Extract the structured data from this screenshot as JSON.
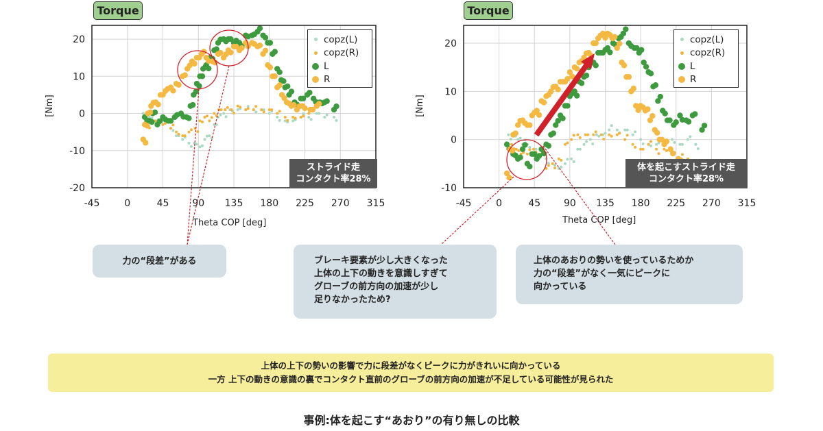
{
  "colors": {
    "L": "#3e9a3e",
    "R": "#f4b942",
    "copzL": "#a9d9c3",
    "copzR": "#f2b43a",
    "highlight": "#d0202a"
  },
  "chart_data": [
    {
      "type": "scatter",
      "badge": "Torque",
      "xlabel": "Theta COP [deg]",
      "ylabel": "[Nm]",
      "xlim": [
        -45,
        315
      ],
      "ylim": [
        -20,
        23.7
      ],
      "xticks": [
        "-45",
        "0",
        "45",
        "90",
        "135",
        "180",
        "225",
        "270",
        "315"
      ],
      "yticks": [
        "20",
        "10",
        "0",
        "-10",
        "-20"
      ],
      "grid": true,
      "legend_position": "top-right",
      "tag": [
        "ストライド走",
        "コンタクト率28%"
      ],
      "series": [
        {
          "name": "copz(L)",
          "key": "copzL",
          "marker": "small",
          "points": [
            [
              20,
              0
            ],
            [
              28,
              -1
            ],
            [
              36,
              -2
            ],
            [
              45,
              -3
            ],
            [
              55,
              -4
            ],
            [
              62,
              -6
            ],
            [
              70,
              -7
            ],
            [
              78,
              -8
            ],
            [
              85,
              -8
            ],
            [
              92,
              -9
            ],
            [
              98,
              -7
            ],
            [
              104,
              -6
            ],
            [
              110,
              -3
            ],
            [
              115,
              -1
            ],
            [
              122,
              0
            ],
            [
              130,
              1
            ],
            [
              140,
              1
            ],
            [
              150,
              1
            ],
            [
              160,
              1
            ],
            [
              170,
              1
            ],
            [
              180,
              0
            ],
            [
              190,
              -1
            ],
            [
              200,
              -2
            ],
            [
              210,
              -2
            ],
            [
              220,
              -1
            ],
            [
              230,
              -1
            ],
            [
              240,
              0
            ],
            [
              250,
              -1
            ],
            [
              262,
              -1
            ]
          ]
        },
        {
          "name": "copz(R)",
          "key": "copzR",
          "marker": "small",
          "points": [
            [
              25,
              -3
            ],
            [
              35,
              -2
            ],
            [
              45,
              -3
            ],
            [
              55,
              -4
            ],
            [
              62,
              -5
            ],
            [
              70,
              -6
            ],
            [
              78,
              -5
            ],
            [
              86,
              -4
            ],
            [
              92,
              -2
            ],
            [
              98,
              -1
            ],
            [
              104,
              -2
            ],
            [
              110,
              0
            ],
            [
              116,
              1
            ],
            [
              124,
              1
            ],
            [
              132,
              1
            ],
            [
              140,
              2
            ],
            [
              150,
              1
            ],
            [
              160,
              1
            ],
            [
              170,
              1
            ],
            [
              180,
              1
            ],
            [
              190,
              0
            ],
            [
              200,
              -1
            ],
            [
              210,
              -1
            ],
            [
              220,
              -1
            ],
            [
              230,
              0
            ]
          ]
        },
        {
          "name": "L",
          "key": "L",
          "marker": "large",
          "points": [
            [
              22,
              -1
            ],
            [
              28,
              -2
            ],
            [
              32,
              0
            ],
            [
              38,
              -3
            ],
            [
              45,
              -1
            ],
            [
              52,
              -2
            ],
            [
              60,
              -1
            ],
            [
              68,
              0
            ],
            [
              75,
              -1
            ],
            [
              80,
              2
            ],
            [
              84,
              5
            ],
            [
              88,
              8
            ],
            [
              92,
              10
            ],
            [
              96,
              12
            ],
            [
              100,
              13
            ],
            [
              105,
              15
            ],
            [
              110,
              17
            ],
            [
              115,
              19
            ],
            [
              122,
              20
            ],
            [
              128,
              20
            ],
            [
              135,
              19
            ],
            [
              142,
              19
            ],
            [
              150,
              21
            ],
            [
              158,
              21
            ],
            [
              165,
              22
            ],
            [
              172,
              21
            ],
            [
              178,
              19
            ],
            [
              184,
              16
            ],
            [
              190,
              12
            ],
            [
              195,
              9
            ],
            [
              200,
              7
            ],
            [
              205,
              5
            ],
            [
              212,
              3
            ],
            [
              220,
              4
            ],
            [
              228,
              5
            ],
            [
              236,
              4
            ],
            [
              244,
              3
            ],
            [
              250,
              3
            ],
            [
              262,
              1
            ]
          ]
        },
        {
          "name": "R",
          "key": "R",
          "marker": "large",
          "points": [
            [
              20,
              -7
            ],
            [
              22,
              -3
            ],
            [
              26,
              0
            ],
            [
              30,
              2
            ],
            [
              36,
              3
            ],
            [
              42,
              5
            ],
            [
              48,
              6
            ],
            [
              55,
              7
            ],
            [
              62,
              8
            ],
            [
              70,
              10
            ],
            [
              76,
              12
            ],
            [
              82,
              14
            ],
            [
              88,
              15
            ],
            [
              94,
              16
            ],
            [
              100,
              15
            ],
            [
              108,
              14
            ],
            [
              115,
              16
            ],
            [
              122,
              15
            ],
            [
              128,
              17
            ],
            [
              135,
              18
            ],
            [
              142,
              17
            ],
            [
              150,
              19
            ],
            [
              158,
              19
            ],
            [
              165,
              18
            ],
            [
              172,
              16
            ],
            [
              178,
              13
            ],
            [
              184,
              10
            ],
            [
              190,
              7
            ],
            [
              196,
              5
            ],
            [
              202,
              3
            ],
            [
              208,
              2
            ],
            [
              215,
              1
            ],
            [
              222,
              2
            ],
            [
              232,
              1
            ],
            [
              240,
              2
            ]
          ]
        }
      ]
    },
    {
      "type": "scatter",
      "badge": "Torque",
      "xlabel": "Theta COP [deg]",
      "ylabel": "[Nm]",
      "xlim": [
        -45,
        315
      ],
      "ylim": [
        -10,
        23.7
      ],
      "xticks": [
        "-45",
        "0",
        "45",
        "90",
        "135",
        "180",
        "225",
        "270",
        "315"
      ],
      "yticks": [
        "20",
        "10",
        "0",
        "-10"
      ],
      "grid": true,
      "legend_position": "top-right",
      "tag": [
        "体を起こすストライド走",
        "コンタクト率28%"
      ],
      "series": [
        {
          "name": "copz(L)",
          "key": "copzL",
          "marker": "small",
          "points": [
            [
              12,
              1
            ],
            [
              18,
              1
            ],
            [
              24,
              0
            ],
            [
              30,
              -1
            ],
            [
              36,
              -1
            ],
            [
              44,
              -2
            ],
            [
              52,
              -3
            ],
            [
              60,
              -4
            ],
            [
              68,
              -5
            ],
            [
              76,
              -6
            ],
            [
              84,
              -5
            ],
            [
              92,
              -4
            ],
            [
              100,
              -2
            ],
            [
              108,
              -1
            ],
            [
              116,
              0
            ],
            [
              124,
              1
            ],
            [
              132,
              1
            ],
            [
              140,
              2
            ],
            [
              150,
              2
            ],
            [
              160,
              2
            ],
            [
              170,
              1
            ],
            [
              180,
              0
            ],
            [
              190,
              -1
            ],
            [
              200,
              -1
            ],
            [
              210,
              -1
            ],
            [
              220,
              0
            ],
            [
              230,
              -1
            ],
            [
              240,
              0
            ],
            [
              250,
              -1
            ]
          ]
        },
        {
          "name": "copz(R)",
          "key": "copzR",
          "marker": "small",
          "points": [
            [
              16,
              -1
            ],
            [
              22,
              -2
            ],
            [
              28,
              -3
            ],
            [
              36,
              -3
            ],
            [
              44,
              -2
            ],
            [
              52,
              -3
            ],
            [
              60,
              -6
            ],
            [
              68,
              -5
            ],
            [
              76,
              -4
            ],
            [
              84,
              -1
            ],
            [
              92,
              0
            ],
            [
              100,
              1
            ],
            [
              110,
              1
            ],
            [
              120,
              1
            ],
            [
              130,
              1
            ],
            [
              140,
              1
            ],
            [
              150,
              1
            ],
            [
              160,
              0
            ],
            [
              170,
              -1
            ],
            [
              180,
              -2
            ],
            [
              190,
              -1
            ],
            [
              200,
              -2
            ],
            [
              210,
              -2
            ],
            [
              220,
              -3
            ],
            [
              230,
              -4
            ],
            [
              240,
              -4
            ]
          ]
        },
        {
          "name": "L",
          "key": "L",
          "marker": "large",
          "points": [
            [
              10,
              -1
            ],
            [
              18,
              -3
            ],
            [
              24,
              -4
            ],
            [
              30,
              -2
            ],
            [
              36,
              -5
            ],
            [
              42,
              -3
            ],
            [
              48,
              -4
            ],
            [
              54,
              -2
            ],
            [
              60,
              -1
            ],
            [
              66,
              1
            ],
            [
              72,
              3
            ],
            [
              78,
              5
            ],
            [
              84,
              7
            ],
            [
              90,
              9
            ],
            [
              96,
              10
            ],
            [
              102,
              12
            ],
            [
              108,
              13
            ],
            [
              114,
              15
            ],
            [
              120,
              16
            ],
            [
              126,
              18
            ],
            [
              132,
              18
            ],
            [
              138,
              19
            ],
            [
              145,
              20
            ],
            [
              152,
              21
            ],
            [
              158,
              22
            ],
            [
              165,
              20
            ],
            [
              172,
              19
            ],
            [
              178,
              18
            ],
            [
              184,
              16
            ],
            [
              190,
              14
            ],
            [
              196,
              11
            ],
            [
              202,
              8
            ],
            [
              208,
              6
            ],
            [
              214,
              4
            ],
            [
              222,
              3
            ],
            [
              230,
              5
            ],
            [
              238,
              4
            ],
            [
              246,
              5
            ],
            [
              258,
              2
            ]
          ]
        },
        {
          "name": "R",
          "key": "R",
          "marker": "large",
          "points": [
            [
              10,
              -7
            ],
            [
              14,
              -2
            ],
            [
              18,
              1
            ],
            [
              24,
              3
            ],
            [
              30,
              4
            ],
            [
              36,
              3
            ],
            [
              42,
              5
            ],
            [
              48,
              6
            ],
            [
              54,
              8
            ],
            [
              60,
              9
            ],
            [
              66,
              10
            ],
            [
              72,
              11
            ],
            [
              78,
              12
            ],
            [
              84,
              12
            ],
            [
              90,
              14
            ],
            [
              96,
              15
            ],
            [
              102,
              16
            ],
            [
              108,
              17
            ],
            [
              114,
              18
            ],
            [
              120,
              20
            ],
            [
              126,
              21
            ],
            [
              132,
              22
            ],
            [
              138,
              22
            ],
            [
              144,
              21
            ],
            [
              150,
              19
            ],
            [
              156,
              16
            ],
            [
              162,
              13
            ],
            [
              168,
              10
            ],
            [
              174,
              7
            ],
            [
              180,
              7
            ],
            [
              186,
              6
            ],
            [
              192,
              4
            ],
            [
              198,
              2
            ],
            [
              204,
              0
            ],
            [
              210,
              -1
            ],
            [
              218,
              -2
            ],
            [
              228,
              -4
            ]
          ]
        }
      ]
    }
  ],
  "notes": {
    "left": "力の“段差”がある",
    "middle": [
      "ブレーキ要素が少し大きくなった",
      "上体の上下の動きを意識しすぎて",
      "グローブの前方向の加速が少し",
      "足りなかったため?"
    ],
    "right": [
      "上体のあおりの勢いを使っているためか",
      "力の“段差”がなく一気にピークに",
      "向かっている"
    ]
  },
  "summary": [
    "上体の上下の勢いの影響で力に段差がなくピークに力がきれいに向かっている",
    "一方 上下の動きの意識の裏でコンタクト直前のグローブの前方向の加速が不足している可能性が見られた"
  ],
  "caption": "事例:体を起こす“あおり”の有り無しの比較"
}
